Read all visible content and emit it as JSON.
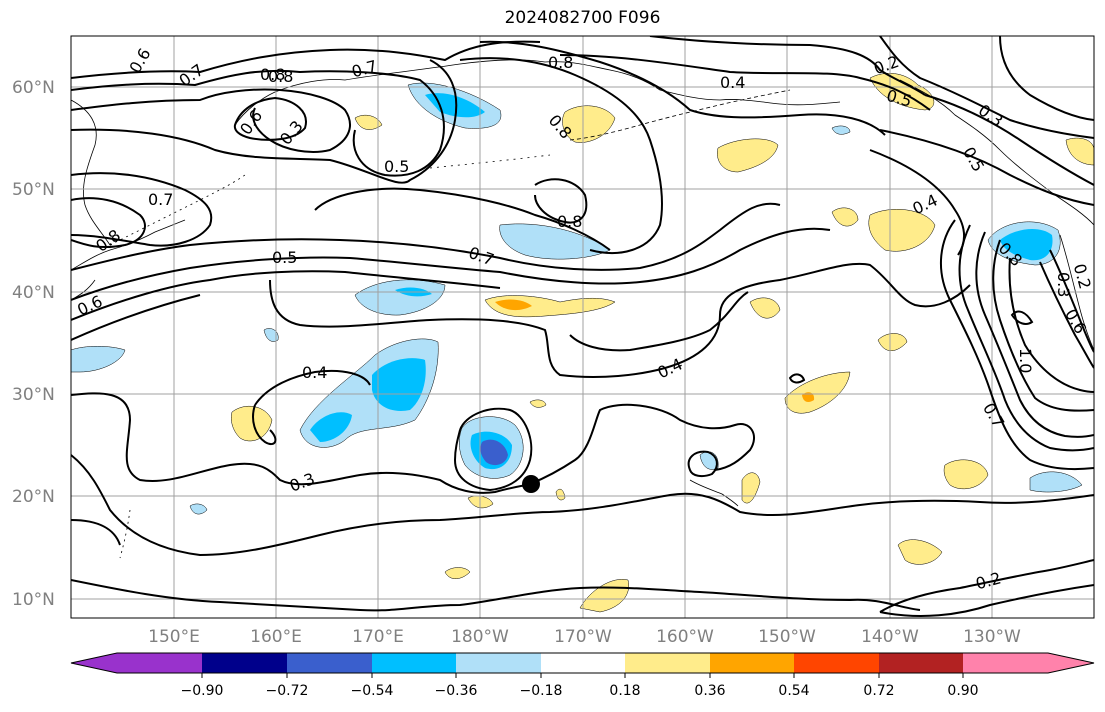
{
  "title": "2024082700 F096",
  "lat_labels": [
    "60°N",
    "50°N",
    "40°N",
    "30°N",
    "20°N",
    "10°N"
  ],
  "lon_labels": [
    "150°E",
    "160°E",
    "170°E",
    "180°W",
    "170°W",
    "160°W",
    "150°W",
    "140°W",
    "130°W"
  ],
  "colorbar": {
    "ticks": [
      "−0.90",
      "−0.72",
      "−0.54",
      "−0.36",
      "−0.18",
      "0.18",
      "0.36",
      "0.54",
      "0.72",
      "0.90"
    ],
    "colors": [
      "#9932cc",
      "#00008b",
      "#3a5fcd",
      "#00bfff",
      "#b0e0f8",
      "#ffffff",
      "#ffec8b",
      "#ffa500",
      "#ff4500",
      "#b22222",
      "#ff82ab"
    ]
  },
  "contour_labels": [
    "0.6",
    "0.7",
    "0.8",
    "0.7",
    "0.8",
    "0.2",
    "0.8",
    "0.4",
    "0.5",
    "0.6",
    "0.3",
    "0.8",
    "0.5",
    "0.3",
    "0.7",
    "0.8",
    "0.4",
    "0.8",
    "0.5",
    "0.7",
    "0.8",
    "0.3",
    "0.2",
    "0.6",
    "0.6",
    "0.4",
    "0.4",
    "1.0",
    "0.7",
    "0.3",
    "0.2",
    "0.5"
  ],
  "storm_marker": "storm-center"
}
